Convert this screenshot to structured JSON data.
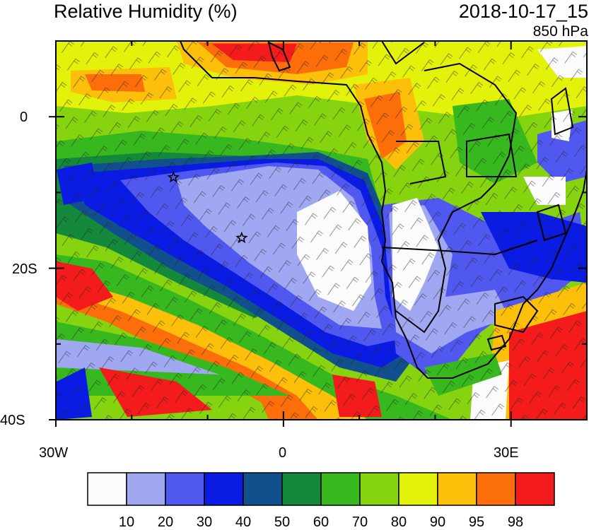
{
  "header": {
    "title": "Relative Humidity (%)",
    "datetime": "2018-10-17_15",
    "level": "850 hPa"
  },
  "axes": {
    "lat_labels": [
      "0",
      "20S",
      "40S"
    ],
    "lon_labels": [
      "30W",
      "0",
      "30E"
    ],
    "lat_range": [
      -40,
      10
    ],
    "lon_range": [
      -30,
      40
    ]
  },
  "colorbar": {
    "labels": [
      "10",
      "20",
      "30",
      "40",
      "50",
      "60",
      "70",
      "80",
      "90",
      "95",
      "98"
    ],
    "colors": [
      "#fbfbfb",
      "#a1a8f2",
      "#5158f0",
      "#0a1be4",
      "#11508c",
      "#14883b",
      "#38b81f",
      "#86d40f",
      "#e3f20a",
      "#fcc00b",
      "#fb6e0a",
      "#f31b1b"
    ]
  },
  "markers": [
    {
      "name": "star-marker-1",
      "lon": -14.5,
      "lat": -8
    },
    {
      "name": "star-marker-2",
      "lon": -5.5,
      "lat": -16
    }
  ]
}
